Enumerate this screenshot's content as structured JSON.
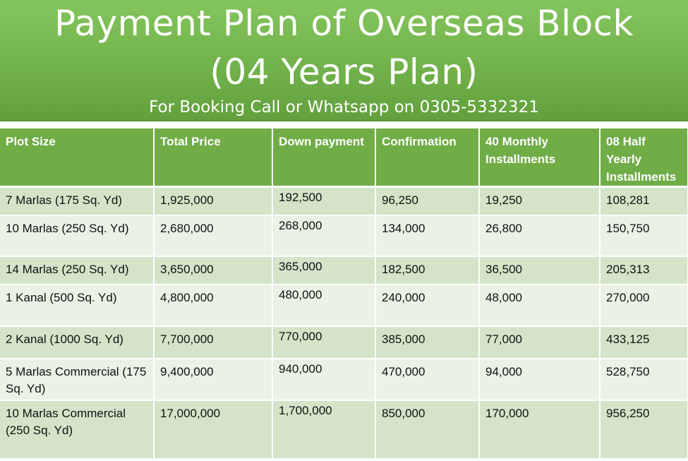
{
  "header": {
    "title_line1": "Payment Plan of Overseas Block",
    "title_line2": "(04 Years Plan)",
    "subtitle": "For Booking Call or Whatsapp on 0305-5332321"
  },
  "colors": {
    "header_green": "#70ad47",
    "row_dark": "#d3e4c8",
    "row_light": "#eaf1e5"
  },
  "table": {
    "columns": [
      "Plot Size",
      "Total Price",
      "Down payment",
      "Confirmation",
      "40 Monthly Installments",
      "08 Half Yearly Installments"
    ],
    "rows": [
      [
        "7 Marlas (175 Sq. Yd)",
        "1,925,000",
        "192,500",
        "96,250",
        "19,250",
        "108,281"
      ],
      [
        "10 Marlas (250 Sq. Yd)",
        "2,680,000",
        "268,000",
        "134,000",
        "26,800",
        "150,750"
      ],
      [
        "14 Marlas (250 Sq. Yd)",
        "3,650,000",
        "365,000",
        "182,500",
        "36,500",
        "205,313"
      ],
      [
        "1 Kanal (500 Sq. Yd)",
        "4,800,000",
        "480,000",
        "240,000",
        "48,000",
        "270,000"
      ],
      [
        "2 Kanal (1000 Sq. Yd)",
        "7,700,000",
        "770,000",
        "385,000",
        "77,000",
        "433,125"
      ],
      [
        "5 Marlas Commercial (175 Sq. Yd)",
        "9,400,000",
        "940,000",
        "470,000",
        "94,000",
        "528,750"
      ],
      [
        "10 Marlas Commercial (250 Sq. Yd)",
        "17,000,000",
        "1,700,000",
        "850,000",
        "170,000",
        "956,250"
      ]
    ]
  }
}
